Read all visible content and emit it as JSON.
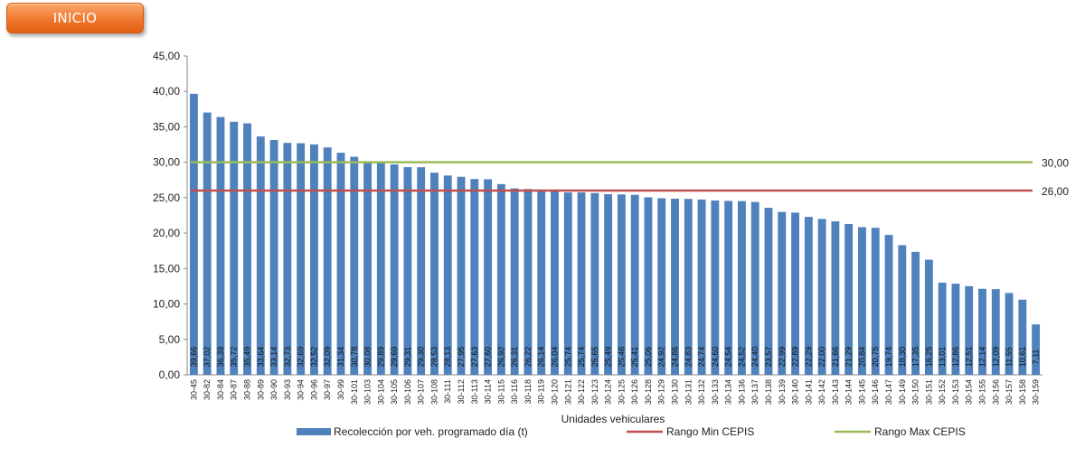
{
  "header": {
    "inicio_label": "INICIO"
  },
  "colors": {
    "bar": "#4f81bd",
    "min_line": "#c0504d",
    "max_line": "#9bbb59"
  },
  "chart_data": {
    "type": "bar",
    "xlabel": "Unidades vehiculares",
    "ylabel": "",
    "ylim": [
      0,
      45
    ],
    "yticks": [
      "0,00",
      "5,00",
      "10,00",
      "15,00",
      "20,00",
      "25,00",
      "30,00",
      "35,00",
      "40,00",
      "45,00"
    ],
    "grid": false,
    "legend_position": "bottom",
    "categories": [
      "30-45",
      "30-82",
      "30-84",
      "30-87",
      "30-88",
      "30-89",
      "30-90",
      "30-93",
      "30-94",
      "30-96",
      "30-97",
      "30-99",
      "30-101",
      "30-103",
      "30-104",
      "30-105",
      "30-106",
      "30-107",
      "30-108",
      "30-111",
      "30-112",
      "30-113",
      "30-114",
      "30-115",
      "30-116",
      "30-118",
      "30-119",
      "30-120",
      "30-121",
      "30-122",
      "30-123",
      "30-124",
      "30-125",
      "30-126",
      "30-128",
      "30-129",
      "30-130",
      "30-131",
      "30-132",
      "30-133",
      "30-134",
      "30-136",
      "30-137",
      "30-138",
      "30-139",
      "30-140",
      "30-141",
      "30-142",
      "30-143",
      "30-144",
      "30-145",
      "30-146",
      "30-147",
      "30-149",
      "30-150",
      "30-151",
      "30-152",
      "30-153",
      "30-154",
      "30-155",
      "30-156",
      "30-157",
      "30-158",
      "30-159"
    ],
    "series": [
      {
        "name": "Recolección por veh. programado día (t)",
        "values": [
          39.66,
          37.02,
          36.39,
          35.72,
          35.49,
          33.64,
          33.14,
          32.73,
          32.69,
          32.52,
          32.09,
          31.34,
          30.78,
          30.08,
          29.89,
          29.69,
          29.31,
          29.3,
          28.53,
          28.13,
          27.95,
          27.63,
          27.6,
          26.92,
          26.31,
          26.22,
          26.14,
          26.04,
          25.74,
          25.74,
          25.65,
          25.49,
          25.46,
          25.41,
          25.06,
          24.92,
          24.86,
          24.83,
          24.74,
          24.6,
          24.54,
          24.52,
          24.4,
          23.57,
          22.99,
          22.89,
          22.29,
          22.0,
          21.66,
          21.29,
          20.84,
          20.75,
          19.74,
          18.3,
          17.35,
          16.25,
          13.01,
          12.86,
          12.51,
          12.14,
          12.09,
          11.55,
          10.61,
          7.11
        ],
        "labels": [
          "39,66",
          "37,02",
          "36,39",
          "35,72",
          "35,49",
          "33,64",
          "33,14",
          "32,73",
          "32,69",
          "32,52",
          "32,09",
          "31,34",
          "30,78",
          "30,08",
          "29,89",
          "29,69",
          "29,31",
          "29,30",
          "28,53",
          "28,13",
          "27,95",
          "27,63",
          "27,60",
          "26,92",
          "26,31",
          "26,22",
          "26,14",
          "26,04",
          "25,74",
          "25,74",
          "25,65",
          "25,49",
          "25,46",
          "25,41",
          "25,06",
          "24,92",
          "24,86",
          "24,83",
          "24,74",
          "24,60",
          "24,54",
          "24,52",
          "24,40",
          "23,57",
          "22,99",
          "22,89",
          "22,29",
          "22,00",
          "21,66",
          "21,29",
          "20,84",
          "20,75",
          "19,74",
          "18,30",
          "17,35",
          "16,25",
          "13,01",
          "12,86",
          "12,51",
          "12,14",
          "12,09",
          "11,55",
          "10,61",
          "7,11"
        ]
      }
    ],
    "reference_lines": [
      {
        "name": "Rango Min CEPIS",
        "value": 26,
        "label": "26,00"
      },
      {
        "name": "Rango Max CEPIS",
        "value": 30,
        "label": "30,00"
      }
    ]
  }
}
